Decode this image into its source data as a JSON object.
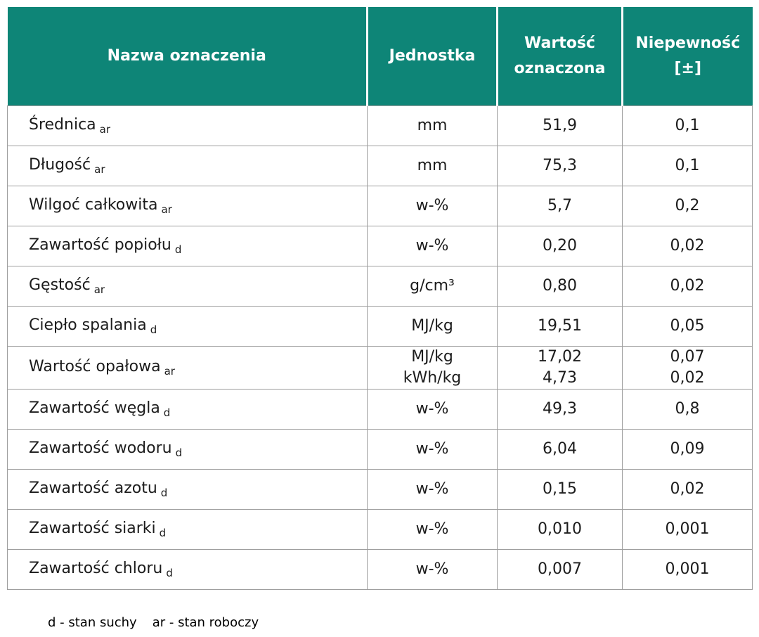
{
  "table": {
    "columns": [
      {
        "label": "Nazwa oznaczenia",
        "label2": ""
      },
      {
        "label": "Jednostka",
        "label2": ""
      },
      {
        "label": "Wartość",
        "label2": "oznaczona"
      },
      {
        "label": "Niepewność",
        "label2": "[±]"
      }
    ],
    "rows": [
      {
        "name": "Średnica",
        "sub": "ar",
        "unit": [
          "mm"
        ],
        "value": [
          "51,9"
        ],
        "unc": [
          "0,1"
        ]
      },
      {
        "name": "Długość",
        "sub": "ar",
        "unit": [
          "mm"
        ],
        "value": [
          "75,3"
        ],
        "unc": [
          "0,1"
        ]
      },
      {
        "name": "Wilgoć całkowita",
        "sub": "ar",
        "unit": [
          "w-%"
        ],
        "value": [
          "5,7"
        ],
        "unc": [
          "0,2"
        ]
      },
      {
        "name": "Zawartość popiołu",
        "sub": "d",
        "unit": [
          "w-%"
        ],
        "value": [
          "0,20"
        ],
        "unc": [
          "0,02"
        ]
      },
      {
        "name": "Gęstość",
        "sub": "ar",
        "unit": [
          "g/cm³"
        ],
        "value": [
          "0,80"
        ],
        "unc": [
          "0,02"
        ]
      },
      {
        "name": "Ciepło spalania",
        "sub": "d",
        "unit": [
          "MJ/kg"
        ],
        "value": [
          "19,51"
        ],
        "unc": [
          "0,05"
        ]
      },
      {
        "name": "Wartość opałowa",
        "sub": "ar",
        "unit": [
          "MJ/kg",
          "kWh/kg"
        ],
        "value": [
          "17,02",
          "4,73"
        ],
        "unc": [
          "0,07",
          "0,02"
        ]
      },
      {
        "name": "Zawartość węgla",
        "sub": "d",
        "unit": [
          "w-%"
        ],
        "value": [
          "49,3"
        ],
        "unc": [
          "0,8"
        ]
      },
      {
        "name": "Zawartość wodoru",
        "sub": "d",
        "unit": [
          "w-%"
        ],
        "value": [
          "6,04"
        ],
        "unc": [
          "0,09"
        ]
      },
      {
        "name": "Zawartość azotu",
        "sub": "d",
        "unit": [
          "w-%"
        ],
        "value": [
          "0,15"
        ],
        "unc": [
          "0,02"
        ]
      },
      {
        "name": "Zawartość siarki",
        "sub": "d",
        "unit": [
          "w-%"
        ],
        "value": [
          "0,010"
        ],
        "unc": [
          "0,001"
        ]
      },
      {
        "name": "Zawartość chloru",
        "sub": "d",
        "unit": [
          "w-%"
        ],
        "value": [
          "0,007"
        ],
        "unc": [
          "0,001"
        ]
      }
    ]
  },
  "footnote": {
    "d": "d - stan suchy",
    "ar": "ar - stan roboczy"
  },
  "colors": {
    "header_bg": "#0E8577",
    "header_text": "#FFFFFF",
    "border": "#9E9E9E",
    "body_text": "#1C1C1C"
  }
}
